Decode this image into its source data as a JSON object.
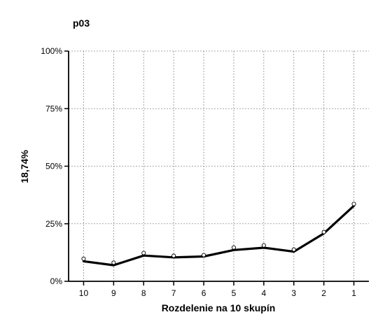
{
  "chart_data": {
    "type": "line",
    "title": "p03",
    "xlabel": "Rozdelenie na 10 skupín",
    "ylabel": "18,74%",
    "categories": [
      "10",
      "9",
      "8",
      "7",
      "6",
      "5",
      "4",
      "3",
      "2",
      "1"
    ],
    "yticks": [
      {
        "value": 0,
        "label": "0%"
      },
      {
        "value": 25,
        "label": "25%"
      },
      {
        "value": 50,
        "label": "50%"
      },
      {
        "value": 75,
        "label": "75%"
      },
      {
        "value": 100,
        "label": "100%"
      }
    ],
    "ylim": [
      0,
      100
    ],
    "grid": true,
    "series": [
      {
        "style": "line",
        "color": "#000000",
        "values": [
          8.7,
          7.0,
          11.2,
          10.4,
          10.8,
          13.6,
          14.6,
          12.9,
          20.8,
          32.8
        ]
      },
      {
        "style": "markers",
        "color": "#000000",
        "values": [
          9.8,
          8.1,
          12.3,
          11.1,
          11.4,
          14.7,
          15.6,
          13.8,
          21.4,
          33.6
        ]
      }
    ]
  }
}
